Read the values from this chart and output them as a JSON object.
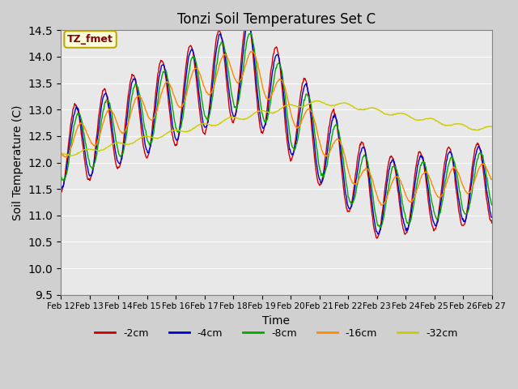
{
  "title": "Tonzi Soil Temperatures Set C",
  "xlabel": "Time",
  "ylabel": "Soil Temperature (C)",
  "ylim": [
    9.5,
    14.5
  ],
  "bg_color": "#e8e8e8",
  "annotation_label": "TZ_fmet",
  "annotation_bg": "#ffffdd",
  "annotation_border": "#bbaa00",
  "series_colors": {
    "-2cm": "#cc0000",
    "-4cm": "#0000cc",
    "-8cm": "#00aa00",
    "-16cm": "#ff8800",
    "-32cm": "#cccc00"
  },
  "x_tick_labels": [
    "Feb 12",
    "Feb 13",
    "Feb 14",
    "Feb 15",
    "Feb 16",
    "Feb 17",
    "Feb 18",
    "Feb 19",
    "Feb 20",
    "Feb 21",
    "Feb 22",
    "Feb 23",
    "Feb 24",
    "Feb 25",
    "Feb 26",
    "Feb 27"
  ],
  "yticks": [
    9.5,
    10.0,
    10.5,
    11.0,
    11.5,
    12.0,
    12.5,
    13.0,
    13.5,
    14.0,
    14.5
  ]
}
